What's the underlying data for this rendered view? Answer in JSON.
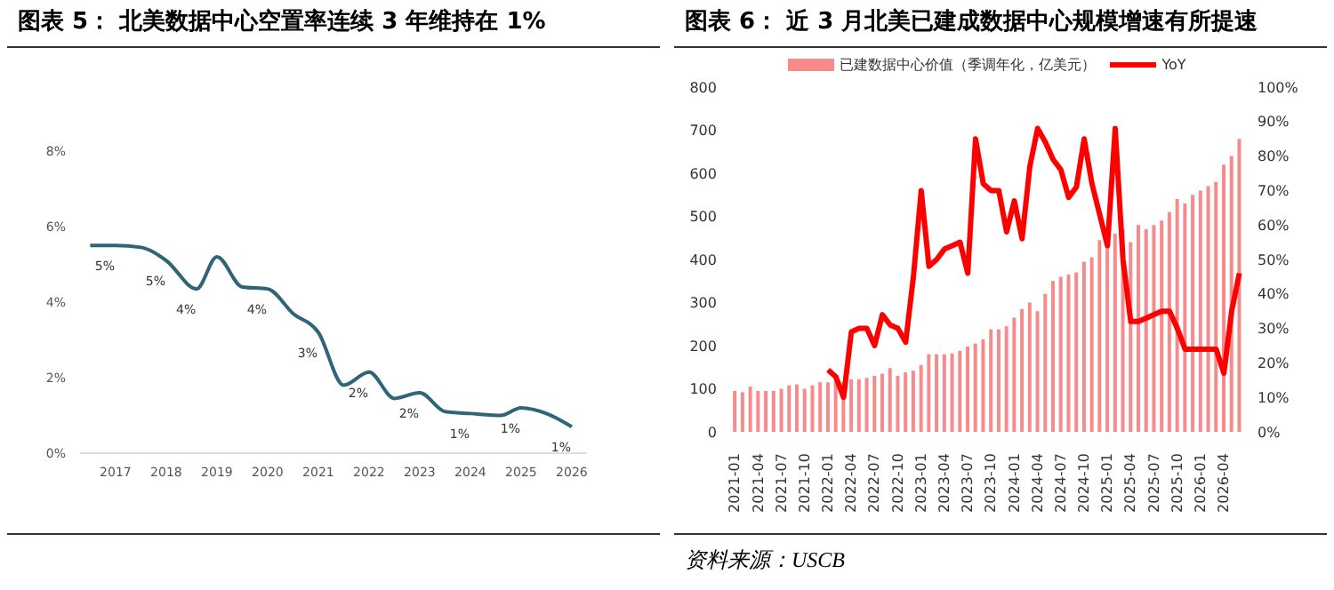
{
  "chart_data": [
    {
      "type": "line",
      "title": "图表 5：  北美数据中心空置率连续 3 年维持在 1%",
      "x": [
        2016.5,
        2017,
        2017.5,
        2018,
        2018.6,
        2019,
        2019.5,
        2020,
        2020.5,
        2021,
        2021.5,
        2022,
        2022.5,
        2023,
        2023.5,
        2024,
        2024.6,
        2025,
        2025.5,
        2026
      ],
      "values": [
        5.5,
        5.5,
        5.45,
        5.1,
        4.35,
        5.2,
        4.4,
        4.35,
        3.7,
        3.2,
        1.8,
        2.15,
        1.45,
        1.6,
        1.1,
        1.05,
        1.0,
        1.2,
        1.05,
        0.7
      ],
      "value_labels": [
        null,
        "5%",
        null,
        "5%",
        "4%",
        null,
        null,
        "4%",
        null,
        "3%",
        null,
        "2%",
        null,
        "2%",
        null,
        "1%",
        null,
        "1%",
        null,
        "1%"
      ],
      "color": "#2e6579",
      "marker": "none",
      "grid": false,
      "xlim": [
        2016.3,
        2026.3
      ],
      "xticks": [
        2017,
        2018,
        2019,
        2020,
        2021,
        2022,
        2023,
        2024,
        2025,
        2026
      ],
      "ylim": [
        0,
        8
      ],
      "yticks": [
        {
          "value": 0,
          "label": "0%"
        },
        {
          "value": 2,
          "label": "2%"
        },
        {
          "value": 4,
          "label": "4%"
        },
        {
          "value": 6,
          "label": "6%"
        },
        {
          "value": 8,
          "label": "8%"
        }
      ]
    },
    {
      "type": "bar",
      "title": "图表 6：  近 3 月北美已建成数据中心规模增速有所提速",
      "annotations": [
        "资料来源：USCB"
      ],
      "legend": "top",
      "grid": false,
      "categories": [
        "2021-01",
        null,
        null,
        "2021-04",
        null,
        null,
        "2021-07",
        null,
        null,
        "2021-10",
        null,
        null,
        "2022-01",
        null,
        null,
        "2022-04",
        null,
        null,
        "2022-07",
        null,
        null,
        "2022-10",
        null,
        null,
        "2023-01",
        null,
        null,
        "2023-04",
        null,
        null,
        "2023-07",
        null,
        null,
        "2023-10",
        null,
        null,
        "2024-01",
        null,
        null,
        "2024-04",
        null,
        null,
        "2024-07",
        null,
        null,
        "2024-10",
        null,
        null,
        "2025-01",
        null,
        null,
        "2025-04",
        null,
        null,
        "2025-07",
        null,
        null,
        "2025-10",
        null,
        null,
        "2026-01",
        null,
        null,
        "2026-04",
        null,
        null
      ],
      "series": [
        {
          "name": "已建数据中心价值（季调年化，亿美元）",
          "type": "bar",
          "color": "#f78a8b",
          "values": [
            95,
            92,
            105,
            95,
            95,
            95,
            100,
            108,
            110,
            100,
            108,
            115,
            115,
            120,
            115,
            122,
            122,
            125,
            130,
            135,
            148,
            130,
            138,
            142,
            155,
            180,
            180,
            180,
            182,
            188,
            198,
            205,
            215,
            238,
            238,
            245,
            265,
            285,
            300,
            280,
            320,
            350,
            360,
            365,
            370,
            395,
            405,
            445,
            450,
            460,
            470,
            440,
            480,
            470,
            480,
            490,
            510,
            540,
            530,
            550,
            560,
            570,
            580,
            620,
            640,
            680
          ]
        },
        {
          "name": "YoY",
          "type": "line",
          "axis": "y2",
          "color": "#ff0000",
          "values": [
            null,
            null,
            null,
            null,
            null,
            null,
            null,
            null,
            null,
            null,
            null,
            null,
            18,
            16,
            10,
            29,
            30,
            30,
            25,
            34,
            31,
            30,
            26,
            45,
            70,
            48,
            50,
            53,
            54,
            55,
            46,
            85,
            72,
            70,
            70,
            58,
            67,
            56,
            77,
            88,
            84,
            79,
            76,
            68,
            71,
            85,
            72,
            63,
            54,
            88,
            50,
            32,
            32,
            33,
            34,
            35,
            35,
            30,
            24,
            24,
            24,
            24,
            24,
            17,
            35,
            46
          ]
        }
      ],
      "ylim": [
        0,
        800
      ],
      "yticks": [
        0,
        100,
        200,
        300,
        400,
        500,
        600,
        700,
        800
      ],
      "y2lim": [
        0,
        100
      ],
      "y2ticks": [
        {
          "value": 0,
          "label": "0%"
        },
        {
          "value": 10,
          "label": "10%"
        },
        {
          "value": 20,
          "label": "20%"
        },
        {
          "value": 30,
          "label": "30%"
        },
        {
          "value": 40,
          "label": "40%"
        },
        {
          "value": 50,
          "label": "50%"
        },
        {
          "value": 60,
          "label": "60%"
        },
        {
          "value": 70,
          "label": "70%"
        },
        {
          "value": 80,
          "label": "80%"
        },
        {
          "value": 90,
          "label": "90%"
        },
        {
          "value": 100,
          "label": "100%"
        }
      ]
    }
  ]
}
